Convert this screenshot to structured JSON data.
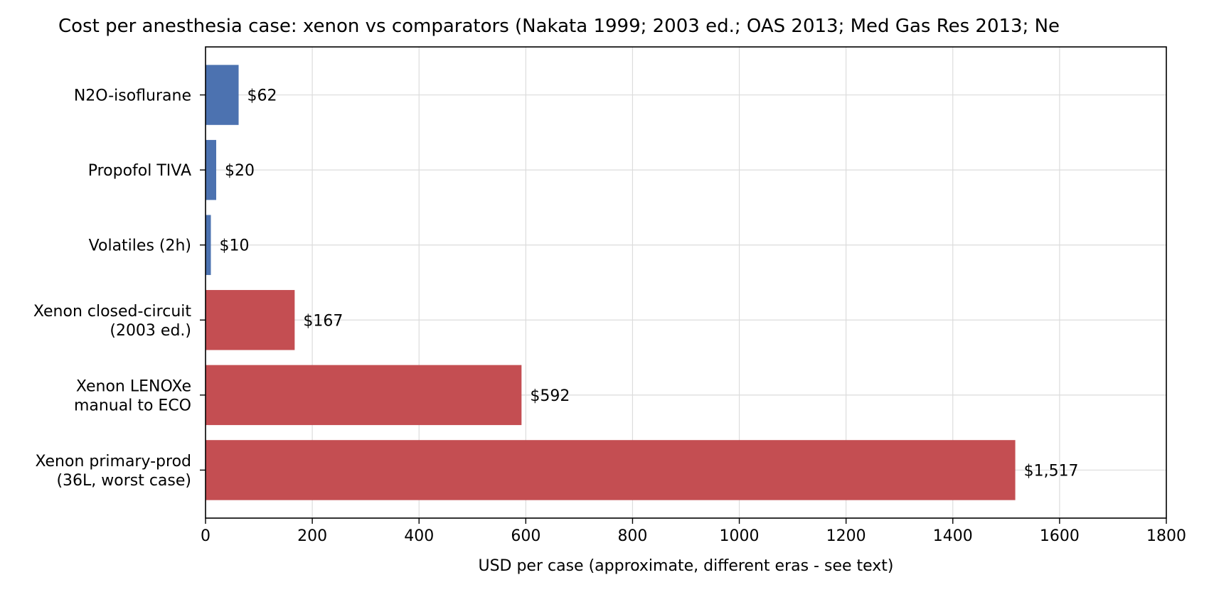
{
  "chart_data": {
    "type": "bar",
    "orientation": "horizontal",
    "title": "Cost per anesthesia case: xenon vs comparators (Nakata 1999; 2003 ed.; OAS 2013; Med Gas Res 2013; Ne",
    "xlabel": "USD per case (approximate, different eras - see text)",
    "ylabel": "",
    "xlim": [
      0,
      1800
    ],
    "xticks": [
      0,
      200,
      400,
      600,
      800,
      1000,
      1200,
      1400,
      1600,
      1800
    ],
    "grid": true,
    "categories": [
      [
        "N2O-isoflurane"
      ],
      [
        "Propofol TIVA"
      ],
      [
        "Volatiles (2h)"
      ],
      [
        "Xenon closed-circuit",
        "(2003 ed.)"
      ],
      [
        "Xenon LENOXe",
        "manual to ECO"
      ],
      [
        "Xenon primary-prod",
        "(36L, worst case)"
      ]
    ],
    "values": [
      62,
      20,
      10,
      167,
      592,
      1517
    ],
    "value_labels": [
      "$62",
      "$20",
      "$10",
      "$167",
      "$592",
      "$1,517"
    ],
    "bar_colors": [
      "#4c72b0",
      "#4c72b0",
      "#4c72b0",
      "#c44e52",
      "#c44e52",
      "#c44e52"
    ]
  }
}
